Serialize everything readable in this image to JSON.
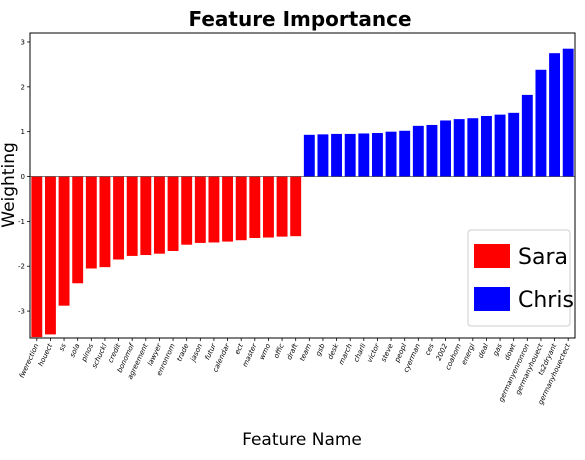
{
  "chart_data": {
    "type": "bar",
    "title": "Feature Importance",
    "xlabel": "Feature Name",
    "ylabel": "Weighting",
    "ylim": [
      -3.6,
      3.2
    ],
    "yticks": [
      -3,
      -2,
      -1,
      0,
      1,
      2,
      3
    ],
    "grid": false,
    "legend_position": "bottom-right",
    "series": [
      {
        "name": "Sara",
        "color": "#ff0000",
        "categories": [
          "fwerection",
          "houect",
          "ss",
          "sola",
          "pinos",
          "schuckl",
          "credit",
          "bonomof",
          "agreement",
          "lawyer",
          "enronrom",
          "trade",
          "jason",
          "futur",
          "calendar",
          "ect",
          "master",
          "wmo",
          "offic",
          "draft"
        ],
        "values": [
          -3.58,
          -3.52,
          -2.88,
          -2.38,
          -2.05,
          -2.02,
          -1.85,
          -1.77,
          -1.75,
          -1.72,
          -1.66,
          -1.52,
          -1.48,
          -1.47,
          -1.45,
          -1.42,
          -1.37,
          -1.36,
          -1.34,
          -1.33
        ]
      },
      {
        "name": "Chris",
        "color": "#0000ff",
        "categories": [
          "team",
          "gsb",
          "desk",
          "march",
          "charli",
          "victor",
          "steve",
          "peopl",
          "cyerman",
          "ces",
          "2002",
          "coahom",
          "energi",
          "deal",
          "gas",
          "dowt",
          "germanyenronron",
          "germanyhouect",
          "ts2dryant",
          "germanyhouectect"
        ],
        "values": [
          0.93,
          0.94,
          0.95,
          0.95,
          0.96,
          0.97,
          1.0,
          1.02,
          1.13,
          1.15,
          1.25,
          1.28,
          1.3,
          1.35,
          1.38,
          1.42,
          1.82,
          2.38,
          2.75,
          2.85
        ]
      }
    ]
  }
}
